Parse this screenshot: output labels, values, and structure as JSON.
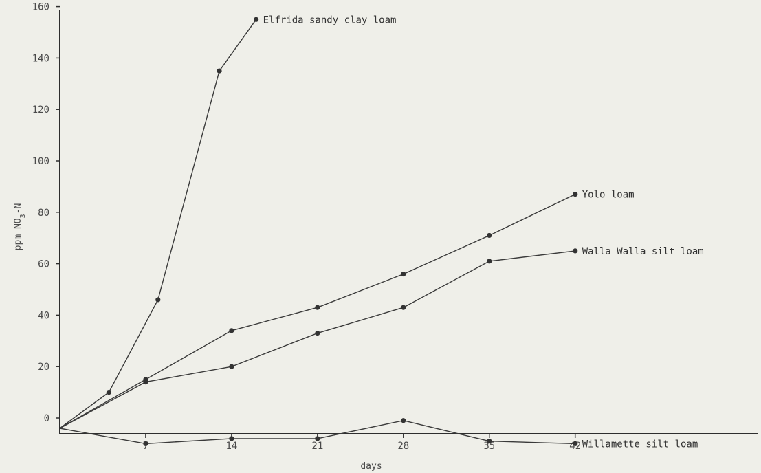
{
  "chart_data": {
    "type": "line",
    "xlabel": "days",
    "ylabel": "ppm NO3-N",
    "ylabel_sub": "3",
    "x_ticks": [
      7,
      14,
      21,
      28,
      35,
      42
    ],
    "y_ticks": [
      0,
      20,
      40,
      60,
      80,
      100,
      120,
      140,
      160
    ],
    "xlim": [
      0,
      42
    ],
    "ylim": [
      0,
      160
    ],
    "grid": false,
    "legend": "labels at line ends",
    "series": [
      {
        "name": "Elfrida sandy clay loam",
        "points": [
          [
            0,
            -4
          ],
          [
            4,
            10
          ],
          [
            8,
            46
          ],
          [
            13,
            135
          ],
          [
            16,
            155
          ]
        ]
      },
      {
        "name": "Yolo loam",
        "points": [
          [
            0,
            -4
          ],
          [
            7,
            15
          ],
          [
            14,
            34
          ],
          [
            21,
            43
          ],
          [
            28,
            56
          ],
          [
            35,
            71
          ],
          [
            42,
            87
          ]
        ]
      },
      {
        "name": "Walla Walla silt loam",
        "points": [
          [
            0,
            -4
          ],
          [
            7,
            14
          ],
          [
            14,
            20
          ],
          [
            21,
            33
          ],
          [
            28,
            43
          ],
          [
            35,
            61
          ],
          [
            42,
            65
          ]
        ]
      },
      {
        "name": "Willamette silt loam",
        "points": [
          [
            0,
            -4
          ],
          [
            7,
            -10
          ],
          [
            14,
            -8
          ],
          [
            21,
            -8
          ],
          [
            28,
            -1
          ],
          [
            35,
            -9
          ],
          [
            42,
            -10
          ]
        ]
      }
    ]
  }
}
